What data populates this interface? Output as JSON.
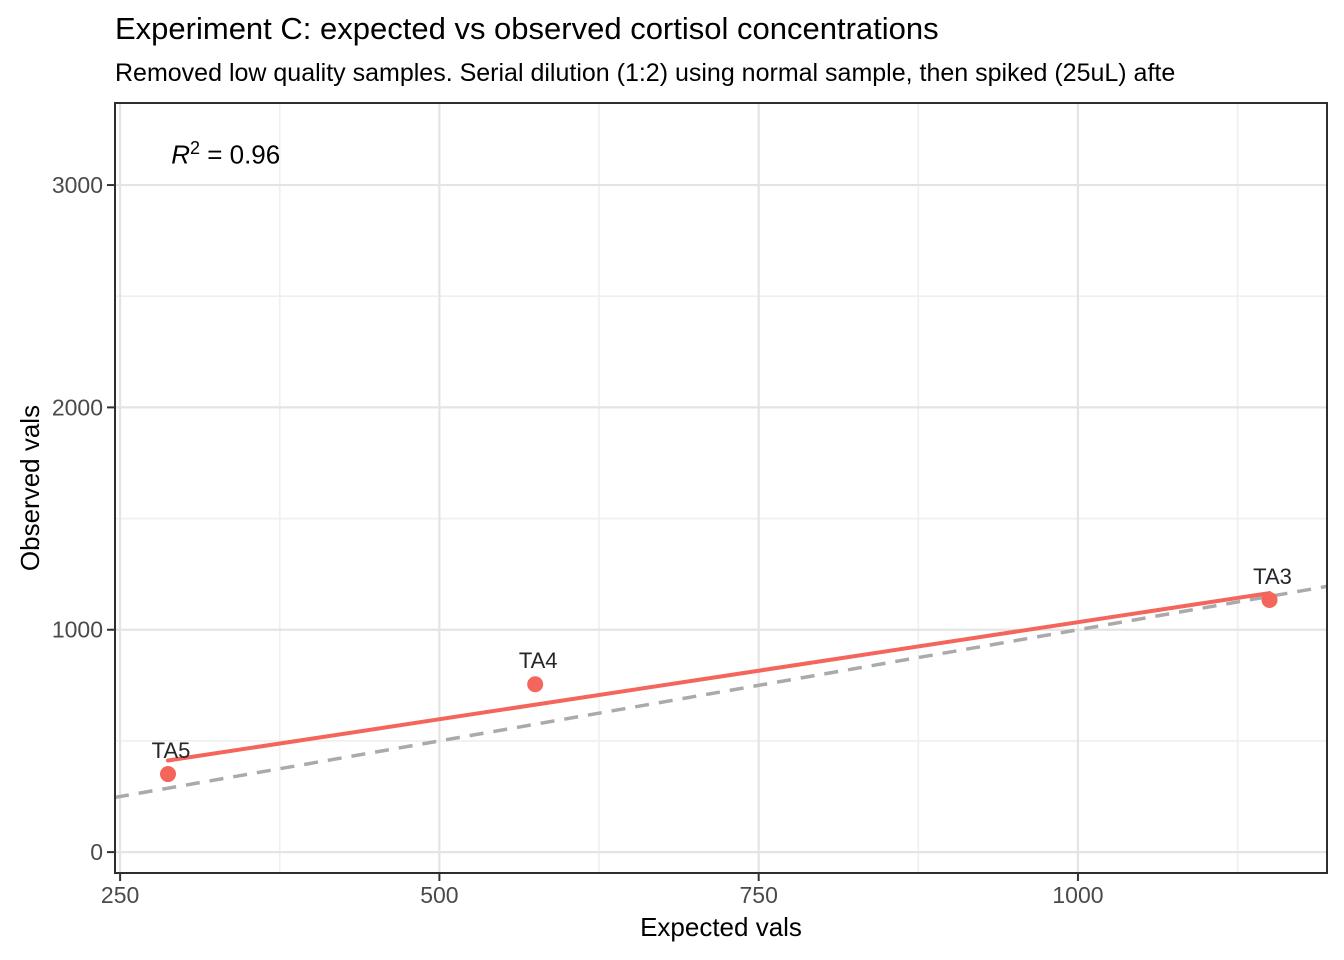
{
  "chart_data": {
    "type": "scatter",
    "title": "Experiment C: expected vs observed cortisol concentrations",
    "subtitle": "Removed low quality samples. Serial dilution (1:2) using normal sample, then spiked (25uL) afte",
    "xlabel": "Expected vals",
    "ylabel": "Observed vals",
    "annotation": {
      "r": "R",
      "sup": "2",
      "rest": " = 0.96",
      "x": 290,
      "y": 3120
    },
    "xlim": [
      246,
      1195
    ],
    "ylim": [
      -94,
      3369
    ],
    "x_major_ticks": [
      250,
      500,
      750,
      1000
    ],
    "x_minor_ticks": [
      375,
      625,
      875,
      1125
    ],
    "y_major_ticks": [
      0,
      1000,
      2000,
      3000
    ],
    "y_minor_ticks": [
      500,
      1500,
      2500
    ],
    "grid": true,
    "legend": "none",
    "points": [
      {
        "label": "TA5",
        "x": 287.5,
        "y": 351
      },
      {
        "label": "TA4",
        "x": 575,
        "y": 755
      },
      {
        "label": "TA3",
        "x": 1150,
        "y": 1134
      }
    ],
    "fit_line": {
      "x1": 287.5,
      "y1": 412,
      "x2": 1150,
      "y2": 1165,
      "style": "solid"
    },
    "identity_line": {
      "x1": 246,
      "y1": 246,
      "x2": 1195,
      "y2": 1195,
      "style": "dashed"
    },
    "colors": {
      "point": "#F4655C",
      "fit_line": "#F4655C",
      "identity_line": "#AAAAAA",
      "grid_major": "#E4E4E4",
      "grid_minor": "#EFEFEF",
      "panel_border": "#2E2E2E",
      "tick_mark": "#333333",
      "tick_label": "#4A4A4A",
      "point_label": "#262626"
    }
  }
}
